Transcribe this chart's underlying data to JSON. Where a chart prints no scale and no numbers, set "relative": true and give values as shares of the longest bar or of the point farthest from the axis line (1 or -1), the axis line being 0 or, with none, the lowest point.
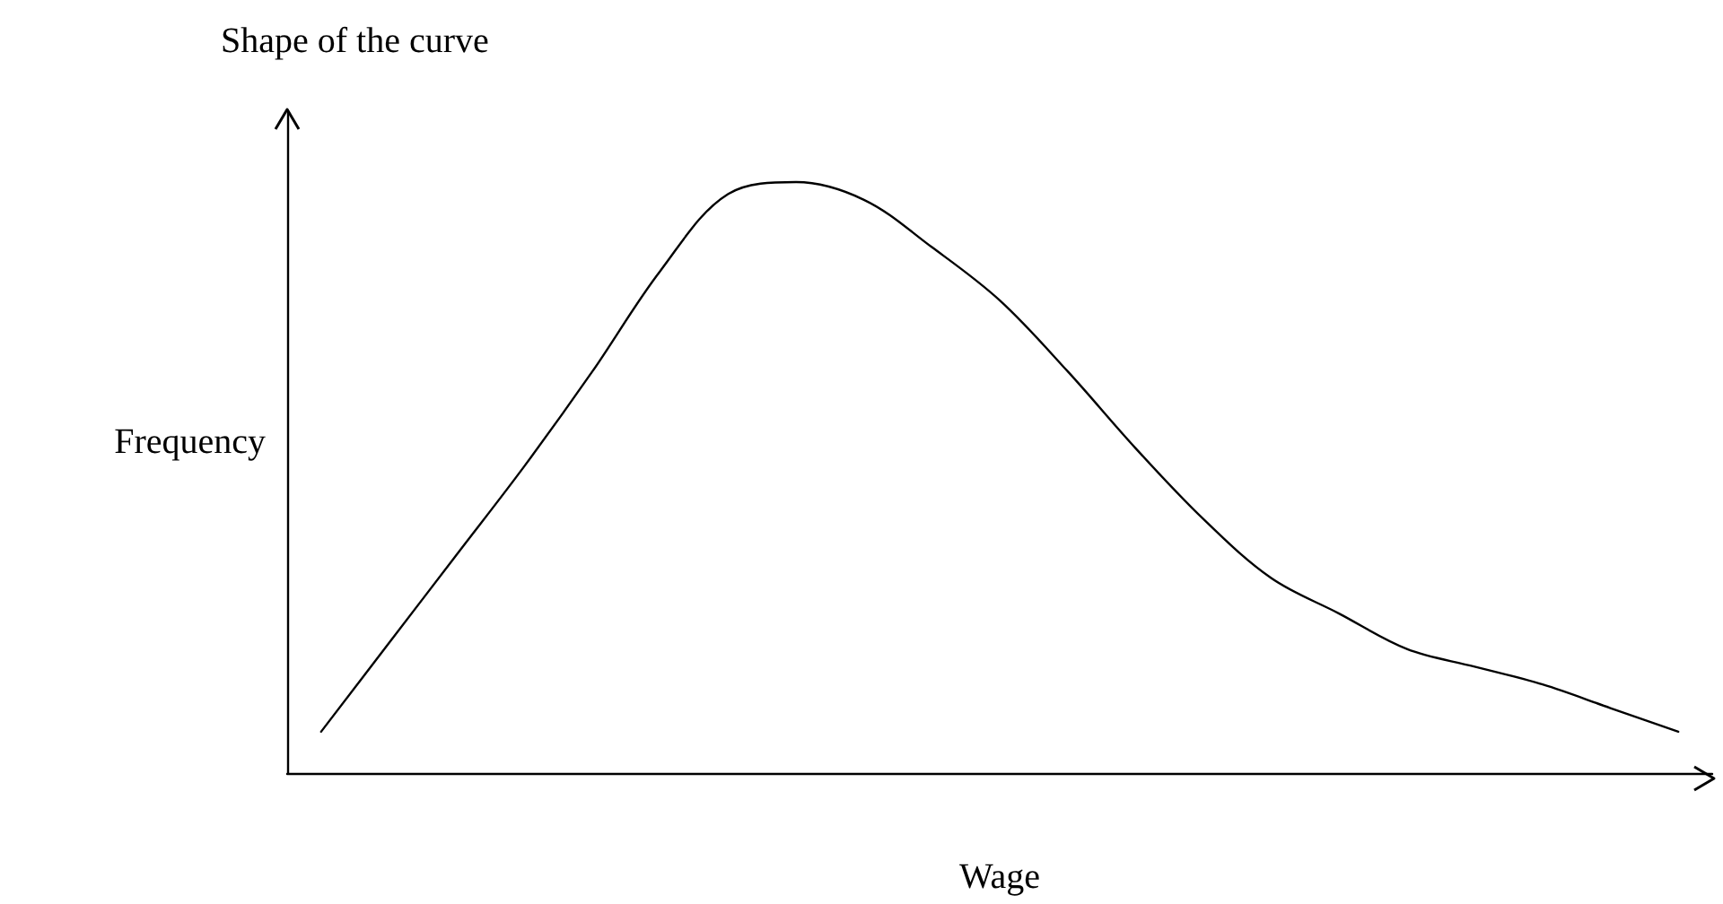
{
  "chart_data": {
    "type": "line",
    "title": "Shape of the curve",
    "xlabel": "Wage",
    "ylabel": "Frequency",
    "relative": true,
    "categories": [
      null,
      null,
      null,
      null,
      null,
      null,
      null,
      null,
      null,
      null,
      null,
      null,
      null,
      null,
      null,
      null,
      null,
      null,
      null,
      null,
      null
    ],
    "series": [
      {
        "color": "#000000",
        "values": [
          0.07,
          0.22,
          0.37,
          0.52,
          0.68,
          0.85,
          0.98,
          1,
          0.97,
          0.89,
          0.8,
          0.68,
          0.55,
          0.43,
          0.33,
          0.27,
          0.21,
          0.18,
          0.15,
          0.11,
          0.07
        ]
      }
    ],
    "grid": false,
    "marker": "none",
    "line_style": "solid"
  }
}
